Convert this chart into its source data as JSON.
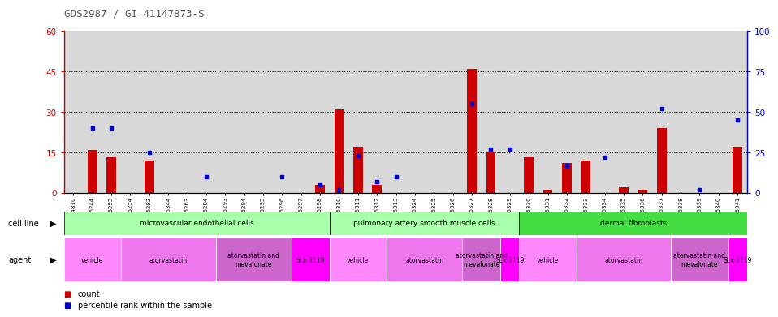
{
  "title": "GDS2987 / GI_41147873-S",
  "samples": [
    "GSM214810",
    "GSM215244",
    "GSM215253",
    "GSM215254",
    "GSM215282",
    "GSM215344",
    "GSM215263",
    "GSM215284",
    "GSM215293",
    "GSM215294",
    "GSM215295",
    "GSM215296",
    "GSM215297",
    "GSM215298",
    "GSM215310",
    "GSM215311",
    "GSM215312",
    "GSM215313",
    "GSM215324",
    "GSM215325",
    "GSM215326",
    "GSM215327",
    "GSM215328",
    "GSM215329",
    "GSM215330",
    "GSM215331",
    "GSM215332",
    "GSM215333",
    "GSM215334",
    "GSM215335",
    "GSM215336",
    "GSM215337",
    "GSM215338",
    "GSM215339",
    "GSM215340",
    "GSM215341"
  ],
  "counts": [
    0,
    16,
    13,
    0,
    12,
    0,
    0,
    0,
    0,
    0,
    0,
    0,
    0,
    3,
    31,
    17,
    3,
    0,
    0,
    0,
    0,
    46,
    15,
    0,
    13,
    1,
    11,
    12,
    0,
    2,
    1,
    24,
    0,
    0,
    0,
    17
  ],
  "percentiles": [
    null,
    40,
    40,
    null,
    25,
    null,
    null,
    10,
    null,
    null,
    null,
    10,
    null,
    5,
    2,
    23,
    7,
    10,
    null,
    null,
    null,
    55,
    27,
    27,
    null,
    null,
    17,
    null,
    22,
    null,
    null,
    52,
    null,
    2,
    null,
    45
  ],
  "cell_lines": [
    {
      "label": "microvascular endothelial cells",
      "start": 0,
      "end": 14,
      "color": "#AAFFAA"
    },
    {
      "label": "pulmonary artery smooth muscle cells",
      "start": 14,
      "end": 24,
      "color": "#AAFFAA"
    },
    {
      "label": "dermal fibroblasts",
      "start": 24,
      "end": 36,
      "color": "#44DD44"
    }
  ],
  "agents": [
    {
      "label": "vehicle",
      "start": 0,
      "end": 3,
      "color": "#FF88FF"
    },
    {
      "label": "atorvastatin",
      "start": 3,
      "end": 8,
      "color": "#EE77EE"
    },
    {
      "label": "atorvastatin and\nmevalonate",
      "start": 8,
      "end": 12,
      "color": "#CC66CC"
    },
    {
      "label": "SLx-2119",
      "start": 12,
      "end": 14,
      "color": "#FF00FF"
    },
    {
      "label": "vehicle",
      "start": 14,
      "end": 17,
      "color": "#FF88FF"
    },
    {
      "label": "atorvastatin",
      "start": 17,
      "end": 21,
      "color": "#EE77EE"
    },
    {
      "label": "atorvastatin and\nmevalonate",
      "start": 21,
      "end": 23,
      "color": "#CC66CC"
    },
    {
      "label": "SLx-2119",
      "start": 23,
      "end": 24,
      "color": "#FF00FF"
    },
    {
      "label": "vehicle",
      "start": 24,
      "end": 27,
      "color": "#FF88FF"
    },
    {
      "label": "atorvastatin",
      "start": 27,
      "end": 32,
      "color": "#EE77EE"
    },
    {
      "label": "atorvastatin and\nmevalonate",
      "start": 32,
      "end": 35,
      "color": "#CC66CC"
    },
    {
      "label": "SLx-2119",
      "start": 35,
      "end": 36,
      "color": "#FF00FF"
    }
  ],
  "ylim_left": [
    0,
    60
  ],
  "ylim_right": [
    0,
    100
  ],
  "yticks_left": [
    0,
    15,
    30,
    45,
    60
  ],
  "yticks_right": [
    0,
    25,
    50,
    75,
    100
  ],
  "bar_color": "#CC0000",
  "dot_color": "#0000CC",
  "bg_color": "#D8D8D8",
  "title_color": "#555555",
  "left_axis_color": "#CC0000",
  "right_axis_color": "#0000CC"
}
